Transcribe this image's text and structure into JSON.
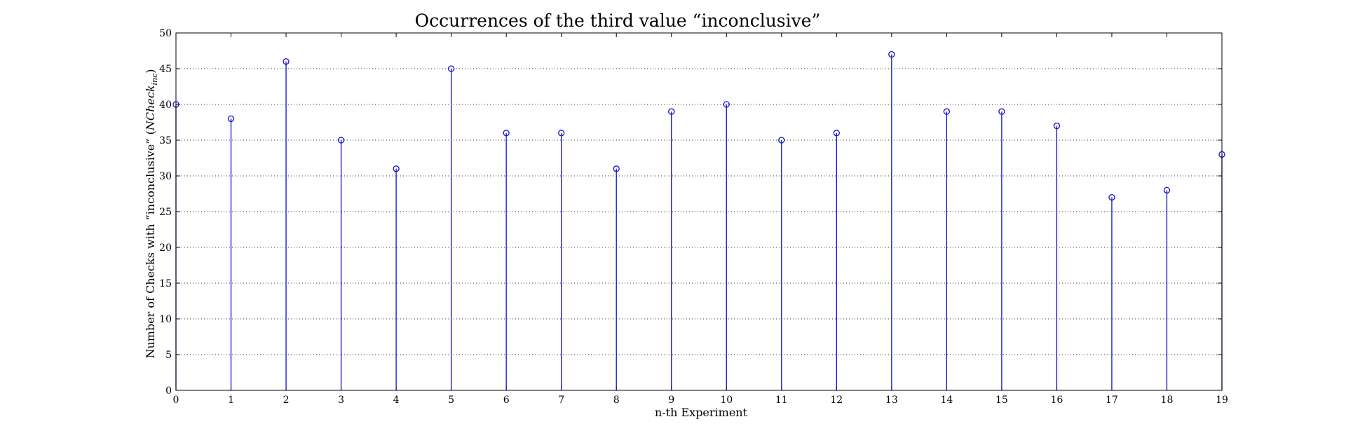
{
  "chart_data": {
    "type": "stem",
    "title": "Occurrences of the third value “inconclusive”",
    "xlabel": "n-th Experiment",
    "ylabel_prefix": "Number of Checks with “inconclusive” (",
    "ylabel_math": "NCheck",
    "ylabel_sub": "inc",
    "ylabel_suffix": ")",
    "xlim": [
      0,
      19
    ],
    "ylim": [
      0,
      50
    ],
    "x_ticks": [
      0,
      1,
      2,
      3,
      4,
      5,
      6,
      7,
      8,
      9,
      10,
      11,
      12,
      13,
      14,
      15,
      16,
      17,
      18,
      19
    ],
    "y_ticks": [
      0,
      5,
      10,
      15,
      20,
      25,
      30,
      35,
      40,
      45,
      50
    ],
    "grid": true,
    "x": [
      0,
      1,
      2,
      3,
      4,
      5,
      6,
      7,
      8,
      9,
      10,
      11,
      12,
      13,
      14,
      15,
      16,
      17,
      18,
      19
    ],
    "values": [
      40,
      38,
      46,
      35,
      31,
      45,
      36,
      36,
      31,
      39,
      40,
      35,
      36,
      47,
      39,
      39,
      37,
      27,
      28,
      33
    ],
    "colors": {
      "series": "#1010c8",
      "axes": "#000000",
      "grid": "#333333"
    }
  }
}
